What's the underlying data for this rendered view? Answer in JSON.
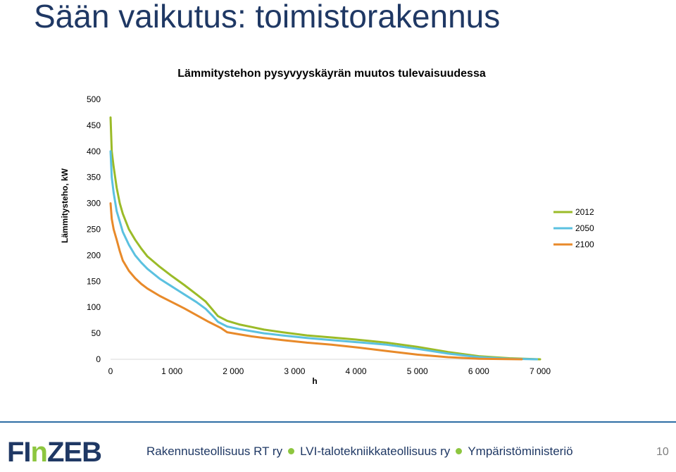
{
  "slide": {
    "title": "Sään vaikutus: toimistorakennus",
    "page_number": "10"
  },
  "footer": {
    "logo": "FInZEB",
    "partners": [
      "Rakennusteollisuus RT ry",
      "LVI-talotekniikkateollisuus ry",
      "Ympäristöministeriö"
    ]
  },
  "chart_data": {
    "type": "line",
    "title": "Lämmitystehon pysyvyyskäyrän muutos tulevaisuudessa",
    "xlabel": "h",
    "ylabel": "Lämmitysteho, kW",
    "xlim": [
      0,
      7000
    ],
    "ylim": [
      0,
      500
    ],
    "x_ticks": [
      0,
      1000,
      2000,
      3000,
      4000,
      5000,
      6000,
      7000
    ],
    "x_tick_labels": [
      "0",
      "1 000",
      "2 000",
      "3 000",
      "4 000",
      "5 000",
      "6 000",
      "7 000"
    ],
    "y_ticks": [
      0,
      50,
      100,
      150,
      200,
      250,
      300,
      350,
      400,
      450,
      500
    ],
    "y_tick_labels": [
      "0",
      "50",
      "100",
      "150",
      "200",
      "250",
      "300",
      "350",
      "400",
      "450",
      "500"
    ],
    "grid": false,
    "legend_position": "right",
    "series": [
      {
        "name": "2012",
        "color": "#9bbb28",
        "points": [
          [
            0,
            465
          ],
          [
            20,
            400
          ],
          [
            50,
            370
          ],
          [
            100,
            330
          ],
          [
            150,
            300
          ],
          [
            200,
            280
          ],
          [
            300,
            250
          ],
          [
            400,
            230
          ],
          [
            500,
            213
          ],
          [
            600,
            198
          ],
          [
            800,
            178
          ],
          [
            1000,
            160
          ],
          [
            1200,
            143
          ],
          [
            1400,
            125
          ],
          [
            1550,
            111
          ],
          [
            1650,
            97
          ],
          [
            1750,
            83
          ],
          [
            1900,
            74
          ],
          [
            2100,
            67
          ],
          [
            2300,
            62
          ],
          [
            2500,
            57
          ],
          [
            2800,
            52
          ],
          [
            3200,
            46
          ],
          [
            3600,
            42
          ],
          [
            4000,
            38
          ],
          [
            4500,
            32
          ],
          [
            5000,
            24
          ],
          [
            5500,
            14
          ],
          [
            6000,
            6
          ],
          [
            6500,
            2
          ],
          [
            7000,
            0
          ]
        ]
      },
      {
        "name": "2050",
        "color": "#5bc1e0",
        "points": [
          [
            0,
            400
          ],
          [
            20,
            350
          ],
          [
            50,
            320
          ],
          [
            100,
            285
          ],
          [
            150,
            265
          ],
          [
            200,
            245
          ],
          [
            300,
            220
          ],
          [
            400,
            200
          ],
          [
            500,
            186
          ],
          [
            600,
            174
          ],
          [
            800,
            155
          ],
          [
            1000,
            140
          ],
          [
            1200,
            125
          ],
          [
            1400,
            110
          ],
          [
            1550,
            97
          ],
          [
            1650,
            85
          ],
          [
            1750,
            72
          ],
          [
            1900,
            63
          ],
          [
            2100,
            58
          ],
          [
            2300,
            54
          ],
          [
            2500,
            50
          ],
          [
            2800,
            46
          ],
          [
            3200,
            41
          ],
          [
            3600,
            37
          ],
          [
            4000,
            33
          ],
          [
            4500,
            28
          ],
          [
            5000,
            20
          ],
          [
            5500,
            11
          ],
          [
            6000,
            4
          ],
          [
            6500,
            1
          ],
          [
            6950,
            0
          ]
        ]
      },
      {
        "name": "2100",
        "color": "#e88a2a",
        "points": [
          [
            0,
            300
          ],
          [
            20,
            270
          ],
          [
            50,
            250
          ],
          [
            100,
            230
          ],
          [
            150,
            208
          ],
          [
            200,
            190
          ],
          [
            300,
            170
          ],
          [
            400,
            156
          ],
          [
            500,
            145
          ],
          [
            600,
            136
          ],
          [
            800,
            122
          ],
          [
            1000,
            110
          ],
          [
            1200,
            98
          ],
          [
            1400,
            85
          ],
          [
            1600,
            72
          ],
          [
            1800,
            60
          ],
          [
            1900,
            52
          ],
          [
            2100,
            48
          ],
          [
            2300,
            44
          ],
          [
            2500,
            41
          ],
          [
            2800,
            37
          ],
          [
            3200,
            32
          ],
          [
            3600,
            28
          ],
          [
            4000,
            23
          ],
          [
            4500,
            16
          ],
          [
            5000,
            9
          ],
          [
            5500,
            4
          ],
          [
            6000,
            1
          ],
          [
            6700,
            0
          ]
        ]
      }
    ]
  }
}
